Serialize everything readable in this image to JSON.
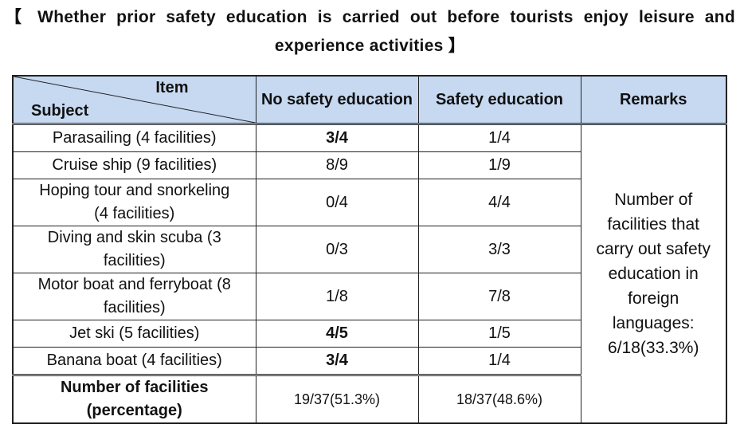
{
  "title": {
    "line1": "【 Whether prior safety education is carried out before tourists enjoy leisure and",
    "line2": "experience activities 】"
  },
  "header": {
    "item": "Item",
    "subject": "Subject",
    "no_safety": "No safety education",
    "safety": "Safety education",
    "remarks": "Remarks"
  },
  "rows": [
    {
      "subject": "Parasailing (4 facilities)",
      "no_safety": "3/4",
      "safety": "1/4"
    },
    {
      "subject": "Cruise ship (9 facilities)",
      "no_safety": "8/9",
      "safety": "1/9"
    },
    {
      "subject": "Hoping tour and snorkeling (4 facilities)",
      "no_safety": "0/4",
      "safety": "4/4"
    },
    {
      "subject": "Diving and skin scuba (3 facilities)",
      "no_safety": "0/3",
      "safety": "3/3"
    },
    {
      "subject": "Motor boat and ferryboat (8 facilities)",
      "no_safety": "1/8",
      "safety": "7/8"
    },
    {
      "subject": "Jet ski (5 facilities)",
      "no_safety": "4/5",
      "safety": "1/5"
    },
    {
      "subject": "Banana boat (4 facilities)",
      "no_safety": "3/4",
      "safety": "1/4"
    }
  ],
  "remarks_text": "Number of facilities that carry out safety education in foreign languages: 6/18(33.3%)",
  "total": {
    "label": "Number of facilities (percentage)",
    "no_safety": "19/37(51.3%)",
    "safety": "18/37(48.6%)"
  }
}
